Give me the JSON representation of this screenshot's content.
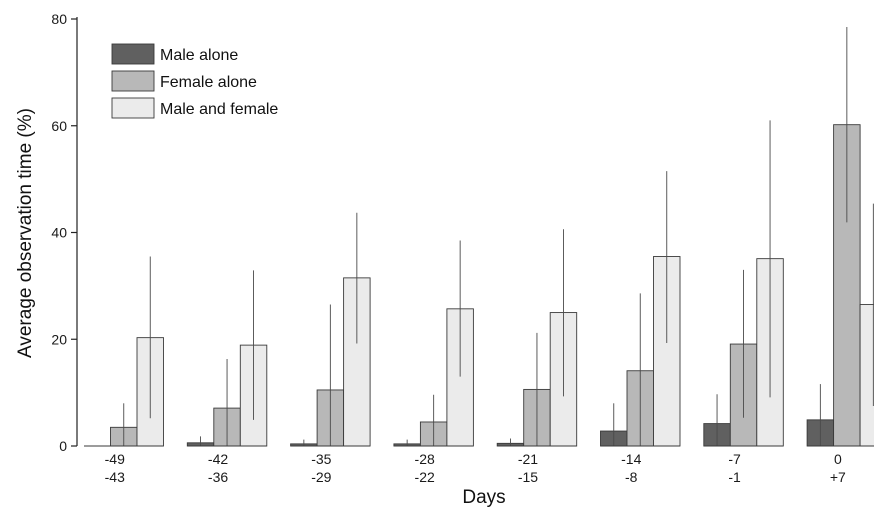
{
  "chart_data": {
    "type": "bar",
    "title": "",
    "xlabel": "Days",
    "ylabel": "Average observation time (%)",
    "ylim": [
      0,
      80
    ],
    "yticks": [
      0,
      20,
      40,
      60,
      80
    ],
    "grid": false,
    "legend_position": "top-left",
    "categories": [
      [
        "-49",
        "-43"
      ],
      [
        "-42",
        "-36"
      ],
      [
        "-35",
        "-29"
      ],
      [
        "-28",
        "-22"
      ],
      [
        "-21",
        "-15"
      ],
      [
        "-14",
        "-8"
      ],
      [
        "-7",
        "-1"
      ],
      [
        "0",
        "+7"
      ]
    ],
    "series": [
      {
        "name": "Male alone",
        "color": "#606060",
        "values": [
          0,
          0.6,
          0.4,
          0.4,
          0.5,
          2.8,
          4.2,
          4.9
        ],
        "error_upper": [
          0,
          1.8,
          1.2,
          1.2,
          1.4,
          8.0,
          9.7,
          11.6
        ],
        "error_lower": [
          0,
          0,
          0,
          0,
          0,
          0,
          0,
          0
        ]
      },
      {
        "name": "Female alone",
        "color": "#b8b8b8",
        "values": [
          3.5,
          7.1,
          10.5,
          4.5,
          10.6,
          14.1,
          19.1,
          60.2
        ],
        "error_upper": [
          8.0,
          16.3,
          26.5,
          9.6,
          21.2,
          28.6,
          33.0,
          78.5
        ],
        "error_lower": [
          0,
          0,
          0,
          0,
          0,
          0,
          5.3,
          41.9
        ]
      },
      {
        "name": "Male and female",
        "color": "#ebebeb",
        "values": [
          20.3,
          18.9,
          31.5,
          25.7,
          25.0,
          35.5,
          35.1,
          26.5
        ],
        "error_upper": [
          35.5,
          32.9,
          43.7,
          38.5,
          40.6,
          51.5,
          61.0,
          45.4
        ],
        "error_lower": [
          5.2,
          4.9,
          19.2,
          13.0,
          9.3,
          19.3,
          9.1,
          7.5
        ]
      }
    ]
  }
}
